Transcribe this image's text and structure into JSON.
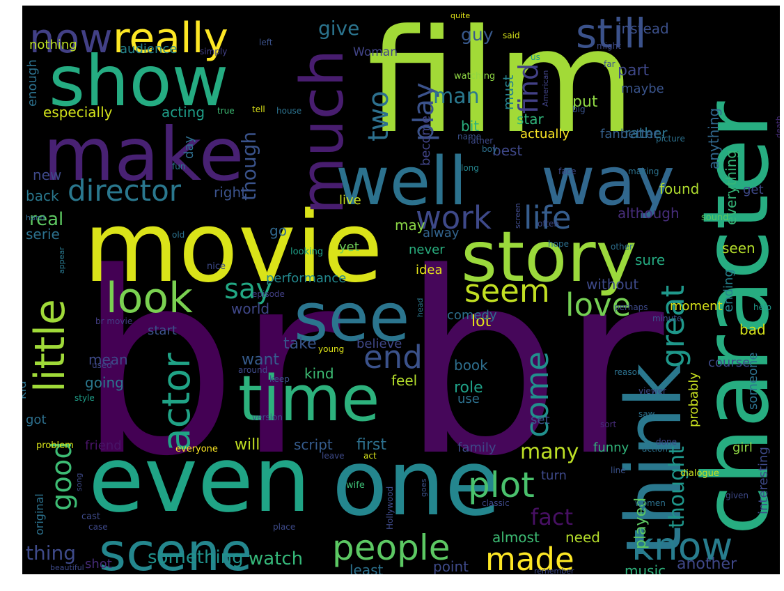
{
  "wordcloud": {
    "background": "#000000",
    "words": [
      {
        "t": "br",
        "c": "#440154"
      },
      {
        "t": "br",
        "c": "#46075a"
      },
      {
        "t": "film",
        "c": "#a2da37"
      },
      {
        "t": "movie",
        "c": "#dae319"
      },
      {
        "t": "character",
        "c": "#27ad81"
      },
      {
        "t": "one",
        "c": "#24868e"
      },
      {
        "t": "even",
        "c": "#20a486"
      },
      {
        "t": "think",
        "c": "#2a788e"
      },
      {
        "t": "story",
        "c": "#9bd93c"
      },
      {
        "t": "make",
        "c": "#482173"
      },
      {
        "t": "show",
        "c": "#25ac82"
      },
      {
        "t": "well",
        "c": "#2c728e"
      },
      {
        "t": "way",
        "c": "#31688e"
      },
      {
        "t": "see",
        "c": "#2b758e"
      },
      {
        "t": "time",
        "c": "#2db27d"
      },
      {
        "t": "much",
        "c": "#481d6f"
      },
      {
        "t": "scene",
        "c": "#24878e"
      },
      {
        "t": "really",
        "c": "#fde725"
      },
      {
        "t": "now",
        "c": "#424086"
      },
      {
        "t": "still",
        "c": "#3b528b"
      },
      {
        "t": "look",
        "c": "#7ad151"
      },
      {
        "t": "director",
        "c": "#2a788e"
      },
      {
        "t": "work",
        "c": "#3e4989"
      },
      {
        "t": "life",
        "c": "#365d8d"
      },
      {
        "t": "little",
        "c": "#a0da39"
      },
      {
        "t": "actor",
        "c": "#20a386"
      },
      {
        "t": "know",
        "c": "#287d8e"
      },
      {
        "t": "people",
        "c": "#5cc863"
      },
      {
        "t": "made",
        "c": "#fde725"
      },
      {
        "t": "plot",
        "c": "#4ac16d"
      },
      {
        "t": "good",
        "c": "#3dbc74"
      },
      {
        "t": "great",
        "c": "#1f988b"
      },
      {
        "t": "play",
        "c": "#3b528b"
      },
      {
        "t": "two",
        "c": "#2d708e"
      },
      {
        "t": "find",
        "c": "#424086"
      },
      {
        "t": "seem",
        "c": "#c2df23"
      },
      {
        "t": "love",
        "c": "#75d054"
      },
      {
        "t": "end",
        "c": "#3b528b"
      },
      {
        "t": "come",
        "c": "#21908d"
      },
      {
        "t": "say",
        "c": "#22a884"
      },
      {
        "t": "man",
        "c": "#2a788e"
      },
      {
        "t": "many",
        "c": "#bddf26"
      },
      {
        "t": "fact",
        "c": "#471063"
      },
      {
        "t": "thought",
        "c": "#1f968b"
      },
      {
        "t": "played",
        "c": "#5ec962"
      },
      {
        "t": "something",
        "c": "#20928c"
      },
      {
        "t": "watch",
        "c": "#35b779"
      },
      {
        "t": "thing",
        "c": "#3e4a89"
      },
      {
        "t": "give",
        "c": "#2b748e"
      },
      {
        "t": "guy",
        "c": "#38598c"
      },
      {
        "t": "part",
        "c": "#3f4889"
      },
      {
        "t": "instead",
        "c": "#3c508b"
      },
      {
        "t": "maybe",
        "c": "#3a548c"
      },
      {
        "t": "rather",
        "c": "#2c738e"
      },
      {
        "t": "audience",
        "c": "#25858e"
      },
      {
        "t": "nothing",
        "c": "#bddf26"
      },
      {
        "t": "Woman",
        "c": "#414487"
      },
      {
        "t": "especially",
        "c": "#d2e21b"
      },
      {
        "t": "acting",
        "c": "#1f9e89"
      },
      {
        "t": "though",
        "c": "#3a538b"
      },
      {
        "t": "actually",
        "c": "#fde725"
      },
      {
        "t": "fanbetter",
        "c": "#35608d"
      },
      {
        "t": "best",
        "c": "#3f4889"
      },
      {
        "t": "star",
        "c": "#31b57b"
      },
      {
        "t": "put",
        "c": "#8fd744"
      },
      {
        "t": "must",
        "c": "#26828e"
      },
      {
        "t": "bit",
        "c": "#2ab07f"
      },
      {
        "t": "become",
        "c": "#414487"
      },
      {
        "t": "day",
        "c": "#2e6e8e"
      },
      {
        "t": "enough",
        "c": "#2c718e"
      },
      {
        "t": "anything",
        "c": "#31688e"
      },
      {
        "t": "everything",
        "c": "#35b779"
      },
      {
        "t": "new",
        "c": "#3e4989"
      },
      {
        "t": "back",
        "c": "#2a788e"
      },
      {
        "t": "real",
        "c": "#5ec962"
      },
      {
        "t": "right",
        "c": "#3b528b"
      },
      {
        "t": "live",
        "c": "#c8e020"
      },
      {
        "t": "found",
        "c": "#b0dd2f"
      },
      {
        "t": "get",
        "c": "#3e4989"
      },
      {
        "t": "although",
        "c": "#472d7b"
      },
      {
        "t": "serie",
        "c": "#2c718e"
      },
      {
        "t": "go",
        "c": "#31688e"
      },
      {
        "t": "may",
        "c": "#8bd646"
      },
      {
        "t": "alway",
        "c": "#32648e"
      },
      {
        "t": "never",
        "c": "#29af7f"
      },
      {
        "t": "yet",
        "c": "#6ece58"
      },
      {
        "t": "seen",
        "c": "#b5de2b"
      },
      {
        "t": "sure",
        "c": "#25ab82"
      },
      {
        "t": "idea",
        "c": "#e5e419"
      },
      {
        "t": "performance",
        "c": "#23898e"
      },
      {
        "t": "without",
        "c": "#3e4a89"
      },
      {
        "t": "ending",
        "c": "#26828e"
      },
      {
        "t": "world",
        "c": "#3f4788"
      },
      {
        "t": "moment",
        "c": "#d8e219"
      },
      {
        "t": "bad",
        "c": "#d5e21a"
      },
      {
        "t": "lot",
        "c": "#e5e419"
      },
      {
        "t": "comedy",
        "c": "#2d708e"
      },
      {
        "t": "start",
        "c": "#3b528b"
      },
      {
        "t": "take",
        "c": "#39568c"
      },
      {
        "t": "believe",
        "c": "#3f4889"
      },
      {
        "t": "want",
        "c": "#365c8d"
      },
      {
        "t": "kind",
        "c": "#3dbc74"
      },
      {
        "t": "mean",
        "c": "#3e4a89"
      },
      {
        "t": "going",
        "c": "#2a788e"
      },
      {
        "t": "feel",
        "c": "#b5de2b"
      },
      {
        "t": "book",
        "c": "#2e6f8e"
      },
      {
        "t": "course",
        "c": "#3e4a89"
      },
      {
        "t": "probably",
        "c": "#c8e020"
      },
      {
        "t": "someone",
        "c": "#2c718e"
      },
      {
        "t": "role",
        "c": "#1fa188"
      },
      {
        "t": "use",
        "c": "#2d708e"
      },
      {
        "t": "set",
        "c": "#3b528b"
      },
      {
        "t": "kid",
        "c": "#2c728e"
      },
      {
        "t": "got",
        "c": "#2d708e"
      },
      {
        "t": "friend",
        "c": "#481467"
      },
      {
        "t": "will",
        "c": "#c2df23"
      },
      {
        "t": "script",
        "c": "#365c8d"
      },
      {
        "t": "first",
        "c": "#2d708e"
      },
      {
        "t": "family",
        "c": "#3e4a89"
      },
      {
        "t": "funny",
        "c": "#31b57b"
      },
      {
        "t": "girl",
        "c": "#8fd744"
      },
      {
        "t": "turn",
        "c": "#3e4989"
      },
      {
        "t": "almost",
        "c": "#3dbc74"
      },
      {
        "t": "need",
        "c": "#b5de2b"
      },
      {
        "t": "original",
        "c": "#2c728e"
      },
      {
        "t": "interesting",
        "c": "#3e4a89"
      },
      {
        "t": "shot",
        "c": "#472c7a"
      },
      {
        "t": "least",
        "c": "#2c718e"
      },
      {
        "t": "point",
        "c": "#3e4a89"
      },
      {
        "t": "music",
        "c": "#2eb37c"
      },
      {
        "t": "another",
        "c": "#3f4889"
      },
      {
        "t": "everyone",
        "c": "#fde725"
      },
      {
        "t": "problem",
        "c": "#d8e219"
      },
      {
        "t": "quite",
        "c": "#e2e418"
      },
      {
        "t": "left",
        "c": "#3b528b"
      },
      {
        "t": "simply",
        "c": "#424086"
      },
      {
        "t": "said",
        "c": "#d5e21a"
      },
      {
        "t": "us",
        "c": "#1f998a"
      },
      {
        "t": "American",
        "c": "#414487"
      },
      {
        "t": "might",
        "c": "#3e4a89"
      },
      {
        "t": "far",
        "c": "#3b528b"
      },
      {
        "t": "watching",
        "c": "#8fd744"
      },
      {
        "t": "true",
        "c": "#3dbc74"
      },
      {
        "t": "tell",
        "c": "#dde318"
      },
      {
        "t": "house",
        "c": "#2c728e"
      },
      {
        "t": "big",
        "c": "#3a548c"
      },
      {
        "t": "death",
        "c": "#472c7a"
      },
      {
        "t": "father",
        "c": "#3e4a89"
      },
      {
        "t": "name",
        "c": "#3b528b"
      },
      {
        "t": "boy",
        "c": "#2d708e"
      },
      {
        "t": "picture",
        "c": "#2c718e"
      },
      {
        "t": "fun",
        "c": "#2a788e"
      },
      {
        "t": "long",
        "c": "#25858e"
      },
      {
        "t": "face",
        "c": "#3e4989"
      },
      {
        "t": "making",
        "c": "#2c728e"
      },
      {
        "t": "screen",
        "c": "#3e4a89"
      },
      {
        "t": "hand",
        "c": "#31688e"
      },
      {
        "t": "old",
        "c": "#2c728e"
      },
      {
        "t": "often",
        "c": "#3e4989"
      },
      {
        "t": "sound",
        "c": "#5ec962"
      },
      {
        "t": "appear",
        "c": "#2a788e"
      },
      {
        "t": "looking",
        "c": "#1fa188"
      },
      {
        "t": "nice",
        "c": "#3e4a89"
      },
      {
        "t": "other",
        "c": "#2e6f8e"
      },
      {
        "t": "hope",
        "c": "#2d708e"
      },
      {
        "t": "episode",
        "c": "#424086"
      },
      {
        "t": "head",
        "c": "#2a788e"
      },
      {
        "t": "perhaps",
        "c": "#3e4a89"
      },
      {
        "t": "minute",
        "c": "#3b528b"
      },
      {
        "t": "help",
        "c": "#1f998a"
      },
      {
        "t": "br movie",
        "c": "#433e85"
      },
      {
        "t": "young",
        "c": "#dde318"
      },
      {
        "t": "used",
        "c": "#3f4889"
      },
      {
        "t": "around",
        "c": "#3e4989"
      },
      {
        "t": "keep",
        "c": "#3b528b"
      },
      {
        "t": "reason",
        "c": "#2c718e"
      },
      {
        "t": "viewer",
        "c": "#3e4a89"
      },
      {
        "t": "style",
        "c": "#1f9e89"
      },
      {
        "t": "version",
        "c": "#3e4a89"
      },
      {
        "t": "saw",
        "c": "#2c728e"
      },
      {
        "t": "sort",
        "c": "#472d7b"
      },
      {
        "t": "action",
        "c": "#2c728e"
      },
      {
        "t": "done",
        "c": "#3e4989"
      },
      {
        "t": "leave",
        "c": "#3e4a89"
      },
      {
        "t": "act",
        "c": "#d5e21a"
      },
      {
        "t": "line",
        "c": "#3b528b"
      },
      {
        "t": "dialogue",
        "c": "#c8e020"
      },
      {
        "t": "wife",
        "c": "#3dbc74"
      },
      {
        "t": "song",
        "c": "#3e4a89"
      },
      {
        "t": "goes",
        "c": "#3b528b"
      },
      {
        "t": "Hollywood",
        "c": "#3e4a89"
      },
      {
        "t": "classic",
        "c": "#3e4989"
      },
      {
        "t": "given",
        "c": "#3e4a89"
      },
      {
        "t": "women",
        "c": "#2c718e"
      },
      {
        "t": "cast",
        "c": "#3e4a89"
      },
      {
        "t": "case",
        "c": "#3e4989"
      },
      {
        "t": "place",
        "c": "#3e4a89"
      },
      {
        "t": "beautiful",
        "c": "#3e4a89"
      },
      {
        "t": "either",
        "c": "#3b528b"
      },
      {
        "t": "remember",
        "c": "#3e4a89"
      }
    ]
  }
}
